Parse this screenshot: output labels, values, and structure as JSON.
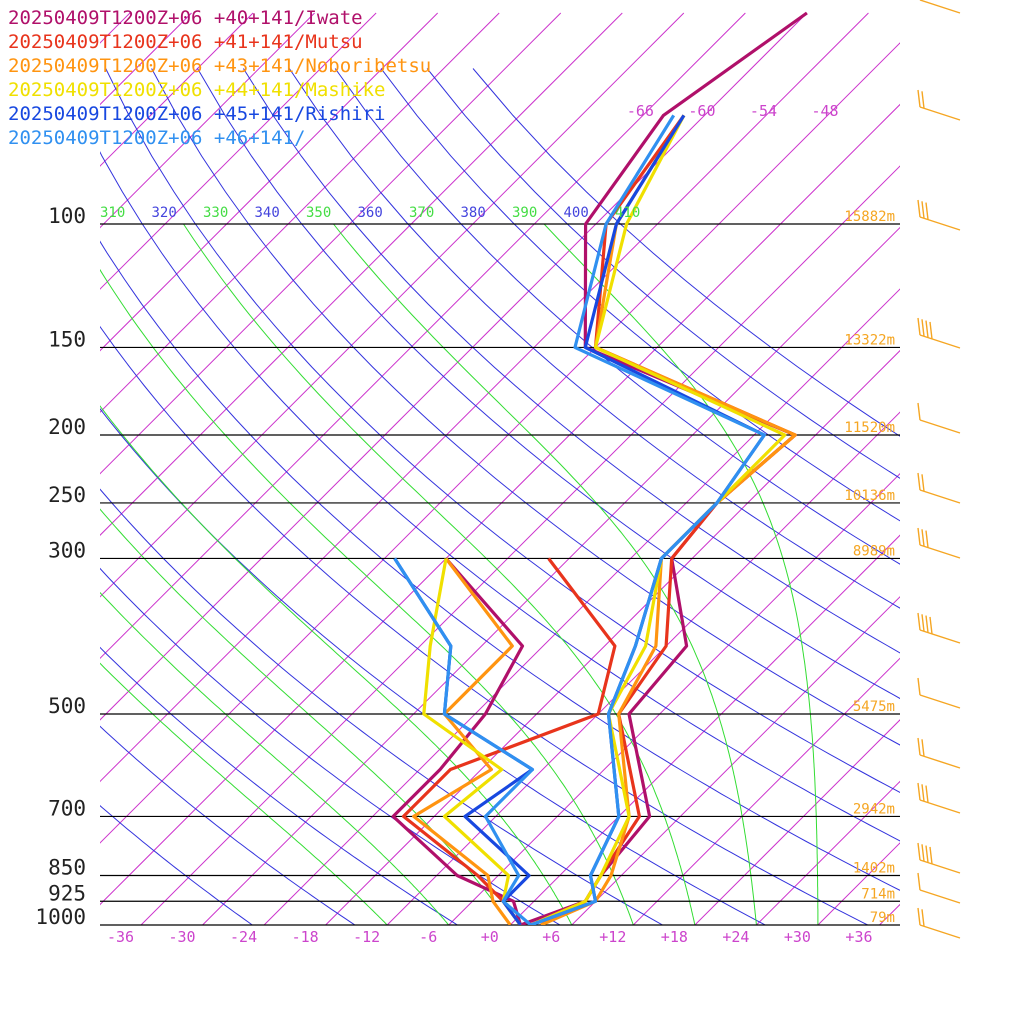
{
  "chart_data": {
    "type": "line",
    "title": "",
    "legend_placement": "top-left",
    "series": [
      {
        "name": "20250409T1200Z+06 +40+141/Iwate",
        "color": "#b0106a",
        "temperature": [
          [
            1000,
            3
          ],
          [
            925,
            7
          ],
          [
            850,
            6
          ],
          [
            700,
            5
          ],
          [
            500,
            -7
          ],
          [
            400,
            -8
          ],
          [
            300,
            -18
          ],
          [
            250,
            -19
          ],
          [
            200,
            -18
          ],
          [
            150,
            -47
          ],
          [
            100,
            -59
          ],
          [
            70,
            -62
          ],
          [
            50,
            -58
          ]
        ],
        "dewpoint": [
          [
            1000,
            3
          ],
          [
            925,
            0
          ],
          [
            850,
            -8
          ],
          [
            700,
            -20
          ],
          [
            600,
            -20
          ],
          [
            500,
            -21
          ],
          [
            400,
            -24
          ],
          [
            300,
            -40
          ]
        ]
      },
      {
        "name": "20250409T1200Z+06 +41+141/Mutsu",
        "color": "#e8341c",
        "temperature": [
          [
            1000,
            5
          ],
          [
            925,
            7
          ],
          [
            850,
            6
          ],
          [
            700,
            4
          ],
          [
            500,
            -8
          ],
          [
            400,
            -10
          ],
          [
            300,
            -18
          ],
          [
            250,
            -19
          ],
          [
            200,
            -18
          ],
          [
            150,
            -46
          ],
          [
            100,
            -57
          ],
          [
            70,
            -60
          ]
        ],
        "dewpoint": [
          [
            1000,
            3
          ],
          [
            925,
            -1
          ],
          [
            850,
            -6
          ],
          [
            700,
            -19
          ],
          [
            600,
            -19
          ],
          [
            500,
            -10
          ],
          [
            400,
            -15
          ],
          [
            300,
            -30
          ]
        ]
      },
      {
        "name": "20250409T1200Z+06 +43+141/Noboribetsu",
        "color": "#ff9410",
        "temperature": [
          [
            1000,
            5
          ],
          [
            925,
            8
          ],
          [
            850,
            7
          ],
          [
            700,
            3
          ],
          [
            500,
            -8
          ],
          [
            400,
            -11
          ],
          [
            300,
            -19
          ],
          [
            250,
            -19
          ],
          [
            200,
            -18
          ],
          [
            150,
            -46
          ],
          [
            100,
            -56
          ],
          [
            70,
            -60
          ]
        ],
        "dewpoint": [
          [
            1000,
            2
          ],
          [
            925,
            -2
          ],
          [
            850,
            -5
          ],
          [
            700,
            -18
          ],
          [
            600,
            -15
          ],
          [
            500,
            -25
          ],
          [
            400,
            -25
          ],
          [
            300,
            -40
          ]
        ]
      },
      {
        "name": "20250409T1200Z+06 +44+141/Mashike",
        "color": "#f0e000",
        "temperature": [
          [
            1000,
            4
          ],
          [
            925,
            7
          ],
          [
            850,
            6
          ],
          [
            700,
            3
          ],
          [
            500,
            -9
          ],
          [
            400,
            -12
          ],
          [
            300,
            -19
          ],
          [
            250,
            -19
          ],
          [
            200,
            -19
          ],
          [
            150,
            -46
          ],
          [
            100,
            -55
          ],
          [
            70,
            -60
          ]
        ],
        "dewpoint": [
          [
            1000,
            3
          ],
          [
            925,
            -1
          ],
          [
            850,
            -3
          ],
          [
            700,
            -15
          ],
          [
            600,
            -14
          ],
          [
            500,
            -27
          ],
          [
            400,
            -33
          ],
          [
            300,
            -40
          ]
        ]
      },
      {
        "name": "20250409T1200Z+06 +45+141/Rishiri",
        "color": "#1848e0",
        "temperature": [
          [
            1000,
            4
          ],
          [
            925,
            8
          ],
          [
            850,
            5
          ],
          [
            700,
            2
          ],
          [
            500,
            -9
          ],
          [
            400,
            -13
          ],
          [
            300,
            -19
          ],
          [
            250,
            -19
          ],
          [
            200,
            -21
          ],
          [
            150,
            -47
          ],
          [
            100,
            -56
          ],
          [
            70,
            -60
          ]
        ],
        "dewpoint": [
          [
            1000,
            3
          ],
          [
            925,
            -1
          ],
          [
            850,
            -1
          ],
          [
            700,
            -13
          ],
          [
            600,
            -11
          ],
          [
            500,
            -25
          ],
          [
            400,
            -31
          ],
          [
            300,
            -45
          ]
        ]
      },
      {
        "name": "20250409T1200Z+06 +46+141/",
        "color": "#3090f0",
        "temperature": [
          [
            1000,
            4
          ],
          [
            925,
            8
          ],
          [
            850,
            5
          ],
          [
            700,
            2
          ],
          [
            500,
            -9
          ],
          [
            400,
            -13
          ],
          [
            300,
            -19
          ],
          [
            250,
            -19
          ],
          [
            200,
            -21
          ],
          [
            150,
            -48
          ],
          [
            100,
            -57
          ],
          [
            70,
            -61
          ]
        ],
        "dewpoint": [
          [
            1000,
            4
          ],
          [
            925,
            -1
          ],
          [
            850,
            -2
          ],
          [
            700,
            -11
          ],
          [
            600,
            -11
          ],
          [
            500,
            -25
          ],
          [
            400,
            -31
          ],
          [
            300,
            -45
          ]
        ]
      }
    ],
    "pressure_levels": [
      {
        "p": 100,
        "label": "100",
        "height": "15882m"
      },
      {
        "p": 150,
        "label": "150",
        "height": "13322m"
      },
      {
        "p": 200,
        "label": "200",
        "height": "11520m"
      },
      {
        "p": 250,
        "label": "250",
        "height": "10136m"
      },
      {
        "p": 300,
        "label": "300",
        "height": "8989m"
      },
      {
        "p": 500,
        "label": "500",
        "height": "5475m"
      },
      {
        "p": 700,
        "label": "700",
        "height": "2942m"
      },
      {
        "p": 850,
        "label": "850",
        "height": "1402m"
      },
      {
        "p": 925,
        "label": "925",
        "height": "714m"
      },
      {
        "p": 1000,
        "label": "1000",
        "height": "79m"
      }
    ],
    "x_ticks": [
      "-36",
      "-30",
      "-24",
      "-18",
      "-12",
      "-6",
      "+0",
      "+6",
      "+12",
      "+18",
      "+24",
      "+30",
      "+36"
    ],
    "upper_temp_labels": [
      "-66",
      "-60",
      "-54",
      "-48"
    ],
    "theta_labels": [
      {
        "text": "310",
        "color": "#44dd44"
      },
      {
        "text": "320",
        "color": "#4444dd"
      },
      {
        "text": "330",
        "color": "#44dd44"
      },
      {
        "text": "340",
        "color": "#4444dd"
      },
      {
        "text": "350",
        "color": "#44dd44"
      },
      {
        "text": "360",
        "color": "#4444dd"
      },
      {
        "text": "370",
        "color": "#44dd44"
      },
      {
        "text": "380",
        "color": "#4444dd"
      },
      {
        "text": "390",
        "color": "#44dd44"
      },
      {
        "text": "400",
        "color": "#4444dd"
      },
      {
        "text": "410",
        "color": "#44dd44"
      }
    ],
    "x_range": [
      -38,
      40
    ],
    "p_range": [
      100,
      1000
    ],
    "y_scale": "log-pressure",
    "grid": true
  },
  "colors": {
    "isotherm": "#cc33cc",
    "dry_adiabat": "#3333dd",
    "moist_adiabat": "#33dd33",
    "isobar": "#000000",
    "wind_barb": "#f5a623",
    "height_label": "#f5a623"
  }
}
